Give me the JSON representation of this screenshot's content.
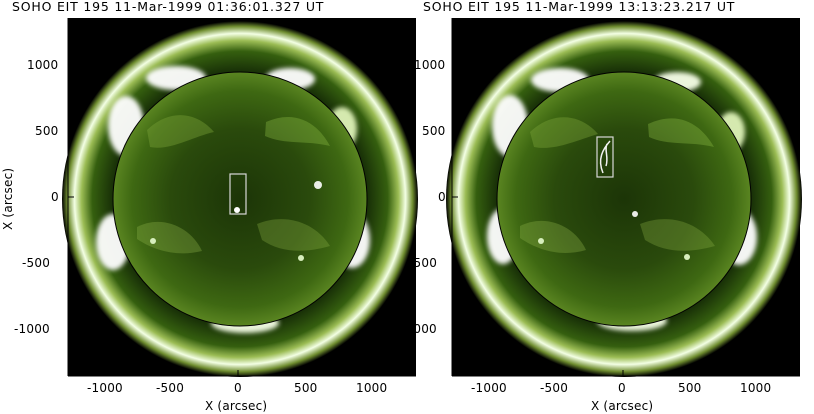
{
  "panels": [
    {
      "title": "SOHO EIT 195 11-Mar-1999 01:36:01.327 UT",
      "xlabel": "X (arcsec)",
      "ylabel": "X (arcsec)",
      "xticks": [
        "-1000",
        "-500",
        "0",
        "500",
        "1000"
      ],
      "yticks": [
        "1000",
        "500",
        "0",
        "-500",
        "-1000"
      ],
      "box_marker": "tall rectangle near disk center with bright dot at bottom"
    },
    {
      "title": "SOHO EIT 195 11-Mar-1999 13:13:23.217 UT",
      "xlabel": "X (arcsec)",
      "ylabel": "",
      "xticks": [
        "-1000",
        "-500",
        "0",
        "500",
        "1000"
      ],
      "yticks": [
        "1000",
        "500",
        "0",
        "-500",
        "-1000"
      ],
      "box_marker": "rectangle left of disk center containing bright loop"
    }
  ],
  "colors": {
    "background": "#000000",
    "corona_bright": "#ffffff",
    "corona_green": "#3f6b12",
    "disk_green": "#1f3a07",
    "limb_line": "#000000",
    "box": "#d8d8d8"
  }
}
